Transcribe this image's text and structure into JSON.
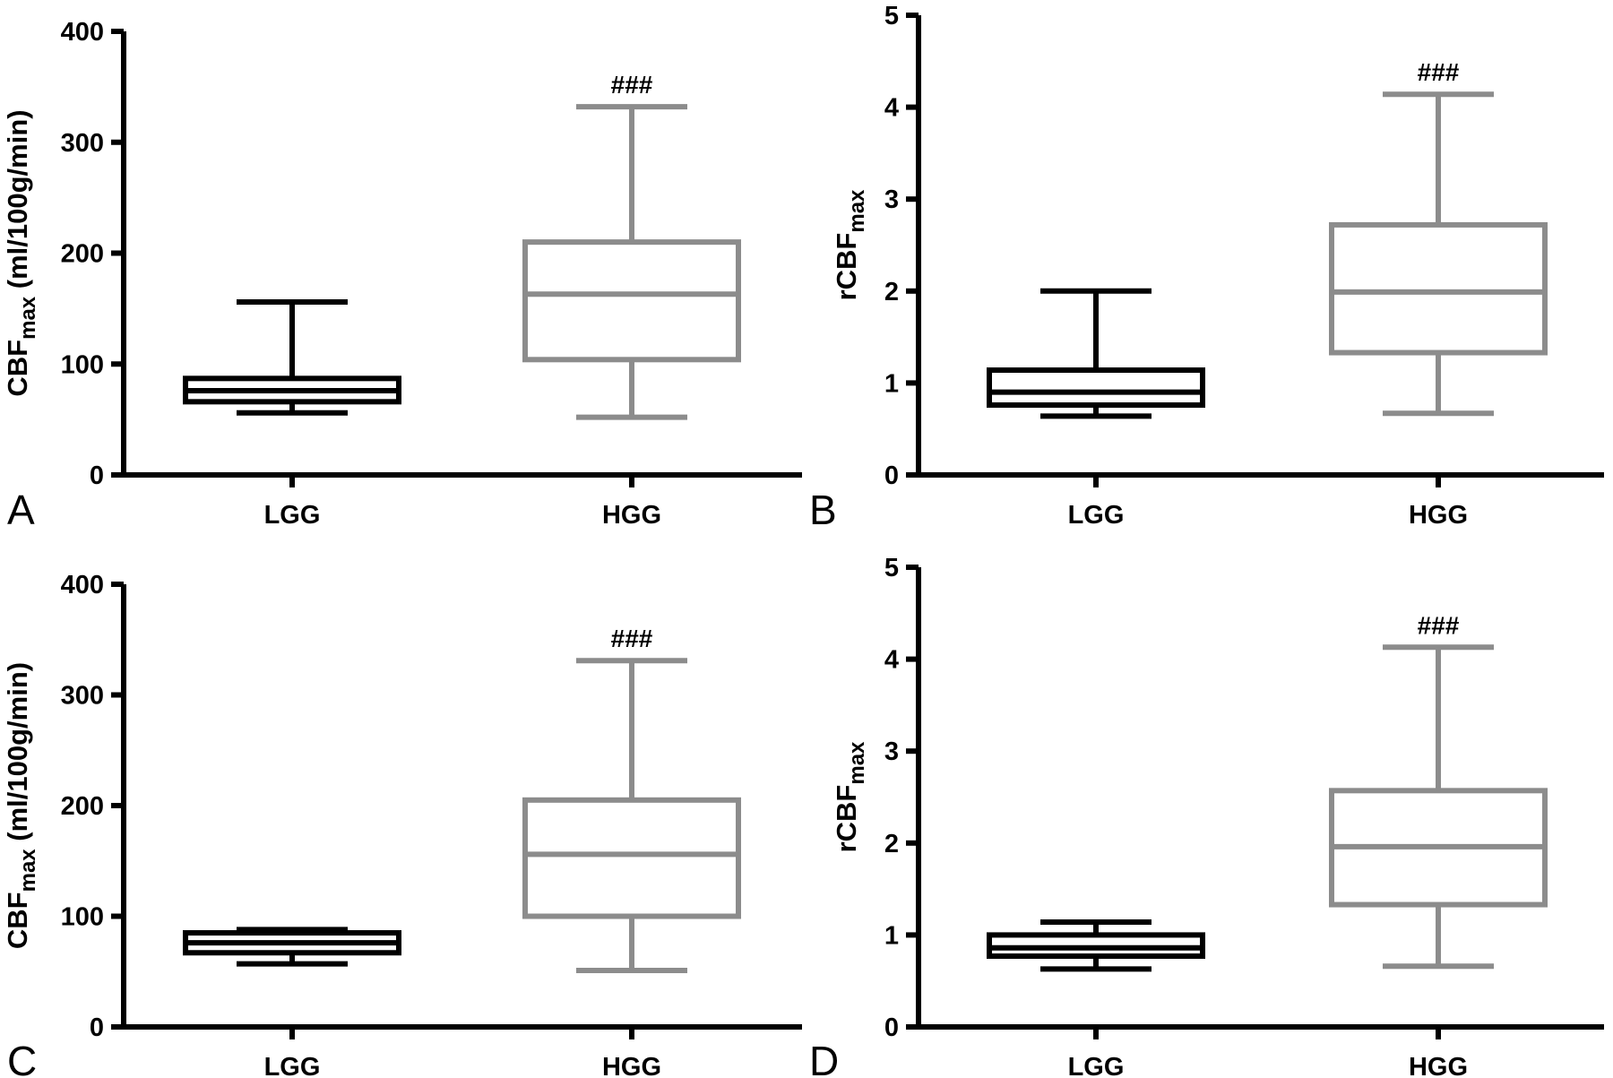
{
  "chart_data": [
    {
      "panel": "A",
      "type": "boxplot",
      "ylabel": {
        "main": "CBF",
        "sub": "max",
        "unit": " (ml/100g/min)"
      },
      "ylim": [
        0,
        400
      ],
      "yticks": [
        "0",
        "100",
        "200",
        "300",
        "400"
      ],
      "categories": [
        "LGG",
        "HGG"
      ],
      "series": [
        {
          "category": "LGG",
          "color": "#000000",
          "min": 56,
          "q1": 66,
          "median": 76,
          "q3": 87,
          "max": 156
        },
        {
          "category": "HGG",
          "color": "#8c8c8c",
          "min": 52,
          "q1": 104,
          "median": 163,
          "q3": 210,
          "max": 332,
          "annotation": "###"
        }
      ]
    },
    {
      "panel": "B",
      "type": "boxplot",
      "ylabel": {
        "main": "rCBF",
        "sub": "max",
        "unit": ""
      },
      "ylim": [
        0,
        5
      ],
      "yticks": [
        "0",
        "1",
        "2",
        "3",
        "4",
        "5"
      ],
      "categories": [
        "LGG",
        "HGG"
      ],
      "series": [
        {
          "category": "LGG",
          "color": "#000000",
          "min": 0.64,
          "q1": 0.76,
          "median": 0.9,
          "q3": 1.14,
          "max": 2.0
        },
        {
          "category": "HGG",
          "color": "#8c8c8c",
          "min": 0.67,
          "q1": 1.33,
          "median": 1.99,
          "q3": 2.72,
          "max": 4.14,
          "annotation": "###"
        }
      ]
    },
    {
      "panel": "C",
      "type": "boxplot",
      "ylabel": {
        "main": "CBF",
        "sub": "max",
        "unit": " (ml/100g/min)"
      },
      "ylim": [
        0,
        400
      ],
      "yticks": [
        "0",
        "100",
        "200",
        "300",
        "400"
      ],
      "categories": [
        "LGG",
        "HGG"
      ],
      "series": [
        {
          "category": "LGG",
          "color": "#000000",
          "min": 57,
          "q1": 67,
          "median": 76,
          "q3": 85,
          "max": 88
        },
        {
          "category": "HGG",
          "color": "#8c8c8c",
          "min": 51,
          "q1": 100,
          "median": 156,
          "q3": 205,
          "max": 331,
          "annotation": "###"
        }
      ]
    },
    {
      "panel": "D",
      "type": "boxplot",
      "ylabel": {
        "main": "rCBF",
        "sub": "max",
        "unit": ""
      },
      "ylim": [
        0,
        5
      ],
      "yticks": [
        "0",
        "1",
        "2",
        "3",
        "4",
        "5"
      ],
      "categories": [
        "LGG",
        "HGG"
      ],
      "series": [
        {
          "category": "LGG",
          "color": "#000000",
          "min": 0.63,
          "q1": 0.77,
          "median": 0.86,
          "q3": 1.0,
          "max": 1.14
        },
        {
          "category": "HGG",
          "color": "#8c8c8c",
          "min": 0.66,
          "q1": 1.33,
          "median": 1.96,
          "q3": 2.57,
          "max": 4.13,
          "annotation": "###"
        }
      ]
    }
  ]
}
